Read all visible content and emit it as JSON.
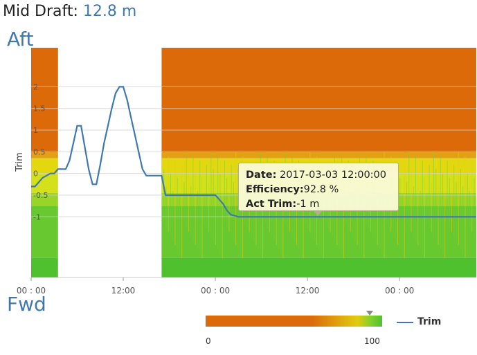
{
  "header": {
    "label": "Mid Draft:",
    "value": "12.8 m"
  },
  "aft_label": "Aft",
  "fwd_label": "Fwd",
  "tooltip": {
    "date_label": "Date:",
    "date_value": "2017-03-03 12:00:00",
    "eff_label": "Efficiency:",
    "eff_value": "92.8 %",
    "trim_label": "Act Trim:",
    "trim_value": "-1 m"
  },
  "color_scale": {
    "min": "0",
    "max": "100",
    "marker_value": 92.8,
    "colors": {
      "low": "#dc6a09",
      "mid": "#e0cc10",
      "high": "#50c030"
    }
  },
  "legend": {
    "series_name": "Trim",
    "color": "#3f78b0"
  },
  "chart_data": {
    "type": "line",
    "ylabel": "Trim",
    "ylim": [
      -2.4,
      2.9
    ],
    "y_ticks": [
      "2",
      "1.5",
      "1",
      "0.5",
      "0",
      "-0.5",
      "-1"
    ],
    "x_ticks": [
      "00 : 00",
      "12:00",
      "00 : 00",
      "12:00",
      "00 : 00"
    ],
    "x_unit": "hours since first 00:00",
    "xlim": [
      0,
      58
    ],
    "grid": true,
    "heatmap_background": {
      "description": "efficiency heatmap by trim, absent from ~3.5h to ~17h",
      "gaps": [
        [
          3.5,
          17
        ]
      ]
    },
    "series": [
      {
        "name": "Trim",
        "x": [
          0,
          0.5,
          1,
          1.5,
          2,
          2.5,
          3,
          3.5,
          4,
          4.5,
          5,
          5.5,
          6,
          6.5,
          7,
          7.5,
          8,
          8.5,
          9,
          9.5,
          10,
          10.5,
          11,
          11.5,
          12,
          12.5,
          13,
          13.5,
          14,
          14.5,
          15,
          15.5,
          16,
          16.5,
          17,
          17.5,
          18,
          18.5,
          19,
          19.5,
          20,
          20.5,
          21,
          21.5,
          22,
          22.5,
          23,
          23.5,
          24,
          24.5,
          25,
          25.5,
          26,
          27,
          28,
          29,
          30,
          31,
          32,
          33,
          34,
          35,
          36,
          37,
          38,
          39,
          40,
          41,
          42,
          43,
          44,
          45,
          46,
          47,
          48,
          49,
          50,
          51,
          52,
          53,
          54,
          55,
          56,
          57,
          58
        ],
        "y": [
          -0.3,
          -0.3,
          -0.2,
          -0.1,
          -0.05,
          0.0,
          0.0,
          0.1,
          0.1,
          0.1,
          0.3,
          0.7,
          1.1,
          1.1,
          0.6,
          0.1,
          -0.25,
          -0.25,
          0.2,
          0.7,
          1.1,
          1.5,
          1.85,
          2.0,
          2.0,
          1.7,
          1.3,
          0.9,
          0.5,
          0.1,
          -0.05,
          -0.05,
          -0.05,
          -0.05,
          -0.05,
          -0.5,
          -0.5,
          -0.5,
          -0.5,
          -0.5,
          -0.5,
          -0.5,
          -0.5,
          -0.5,
          -0.5,
          -0.5,
          -0.5,
          -0.5,
          -0.5,
          -0.6,
          -0.7,
          -0.85,
          -0.95,
          -1.0,
          -1.0,
          -1.0,
          -1.0,
          -1.0,
          -1.0,
          -1.0,
          -1.0,
          -1.0,
          -1.0,
          -1.0,
          -1.0,
          -1.0,
          -1.0,
          -1.0,
          -1.0,
          -1.0,
          -1.0,
          -1.0,
          -1.0,
          -1.0,
          -1.0,
          -1.0,
          -1.0,
          -1.0,
          -1.0,
          -1.0,
          -1.0,
          -1.0,
          -1.0,
          -1.0,
          -1.0
        ]
      }
    ]
  }
}
